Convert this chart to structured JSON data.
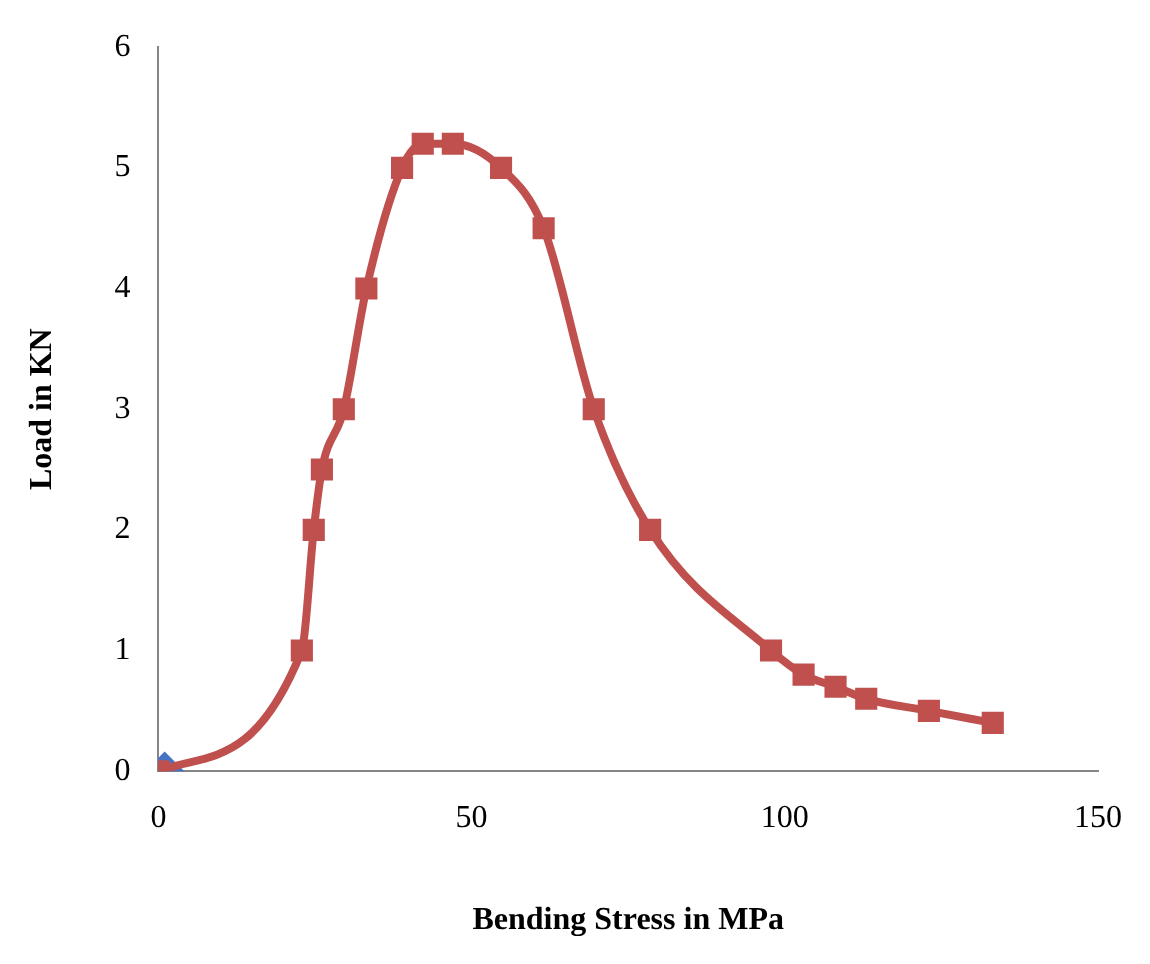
{
  "chart_data": {
    "type": "line",
    "xlabel": "Bending Stress in MPa",
    "ylabel": "Load in KN",
    "xlim": [
      0,
      150
    ],
    "xticks": [
      0,
      50,
      100,
      150
    ],
    "ylim": [
      0,
      6
    ],
    "yticks": [
      0,
      1,
      2,
      3,
      4,
      5,
      6
    ],
    "grid": false,
    "legend": false,
    "series": [
      {
        "color": "#c0504d",
        "marker": "square",
        "x": [
          0,
          22.9,
          24.8,
          26.1,
          29.6,
          33.2,
          38.9,
          42.2,
          47,
          54.7,
          61.5,
          69.5,
          78.5,
          97.8,
          103,
          108.1,
          113,
          123,
          133.2
        ],
        "values": [
          0,
          1,
          2,
          2.5,
          3,
          4,
          5,
          5.2,
          5.2,
          5,
          4.5,
          3,
          2,
          1,
          0.8,
          0.7,
          0.6,
          0.5,
          0.4
        ]
      },
      {
        "color": "#4472c4",
        "marker": "diamond",
        "x": [
          1
        ],
        "values": [
          0
        ]
      }
    ]
  }
}
